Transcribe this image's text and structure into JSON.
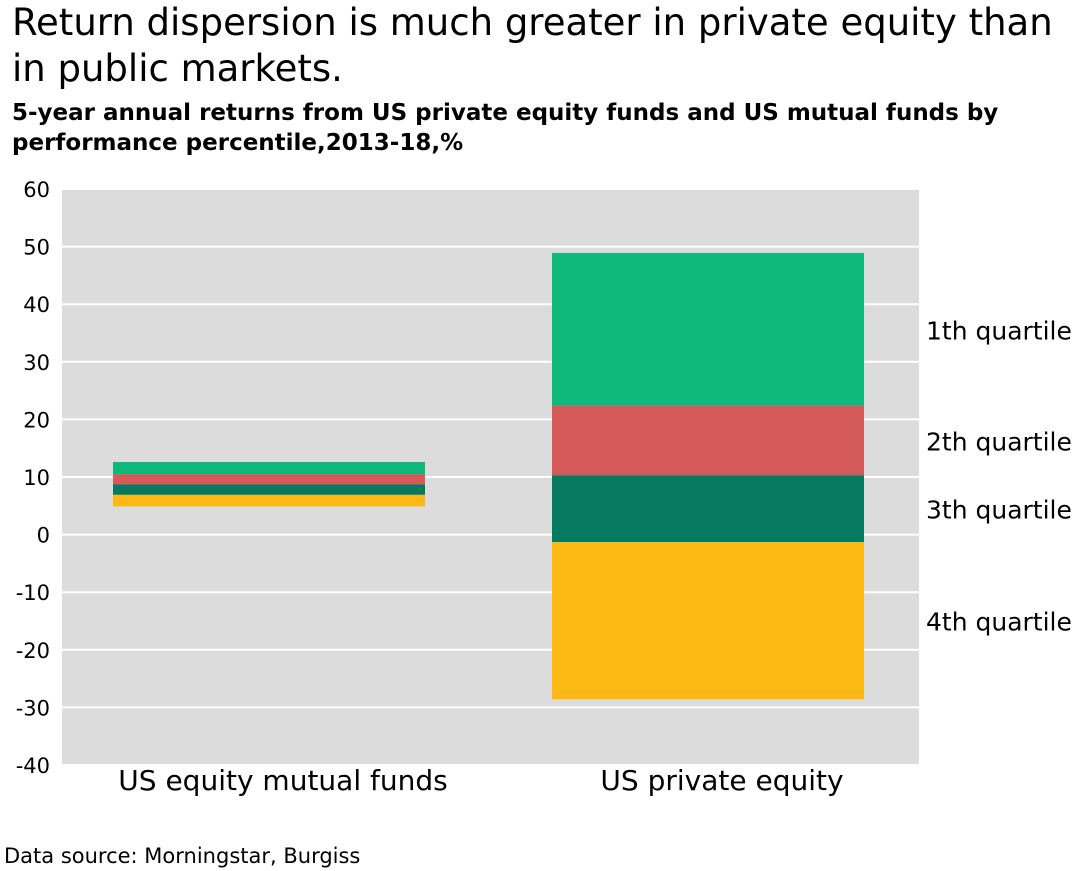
{
  "header": {
    "title": "Return dispersion is much greater in private equity than in public markets.",
    "subtitle": "5-year annual returns from US private equity funds and US mutual funds by performance percentile,2013-18,%"
  },
  "footer": {
    "source": "Data source: Morningstar, Burgiss"
  },
  "colors": {
    "plot_background": "#dcdcdc",
    "gridline": "#ffffff",
    "q1": "#0db87a",
    "q2": "#d45a5a",
    "q3": "#067a60",
    "q4": "#fdb913"
  },
  "chart_data": {
    "type": "bar",
    "subtype": "stacked-floating",
    "categories": [
      "US equity mutual funds",
      "US private equity"
    ],
    "ylim": [
      -40,
      60
    ],
    "yticks": [
      60,
      50,
      40,
      30,
      20,
      10,
      0,
      -10,
      -20,
      -30,
      -40
    ],
    "grid": true,
    "legend_position": "right",
    "series": [
      {
        "name": "1th quartile",
        "color_key": "q1",
        "ranges": [
          [
            10.5,
            12.6
          ],
          [
            22.4,
            48.9
          ]
        ]
      },
      {
        "name": "2th quartile",
        "color_key": "q2",
        "ranges": [
          [
            8.7,
            10.5
          ],
          [
            10.3,
            22.4
          ]
        ]
      },
      {
        "name": "3th quartile",
        "color_key": "q3",
        "ranges": [
          [
            6.9,
            8.7
          ],
          [
            -1.3,
            10.3
          ]
        ]
      },
      {
        "name": "4th quartile",
        "color_key": "q4",
        "ranges": [
          [
            4.9,
            6.9
          ],
          [
            -28.6,
            -1.3
          ]
        ]
      }
    ]
  }
}
